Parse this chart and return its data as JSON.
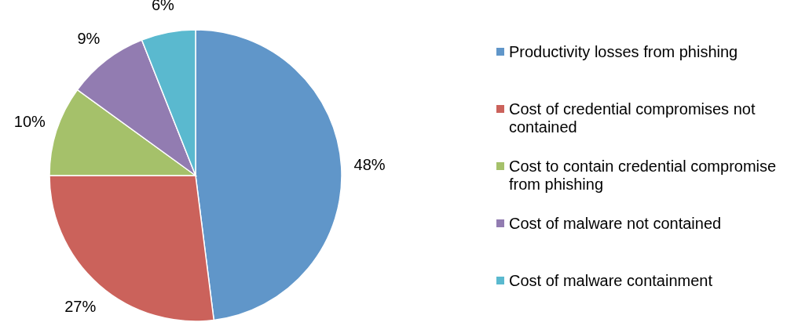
{
  "chart_data": {
    "type": "pie",
    "categories": [
      "Productivity losses from phishing",
      "Cost of credential compromises not contained",
      "Cost to contain credential compromise from phishing",
      "Cost of malware not contained",
      "Cost of malware containment"
    ],
    "values": [
      48,
      27,
      10,
      9,
      6
    ],
    "colors": [
      "#6096c9",
      "#cb625b",
      "#a5c16a",
      "#927cb1",
      "#5ab9cf"
    ],
    "value_labels": [
      "48%",
      "27%",
      "10%",
      "9%",
      "6%"
    ],
    "legend": "right"
  }
}
